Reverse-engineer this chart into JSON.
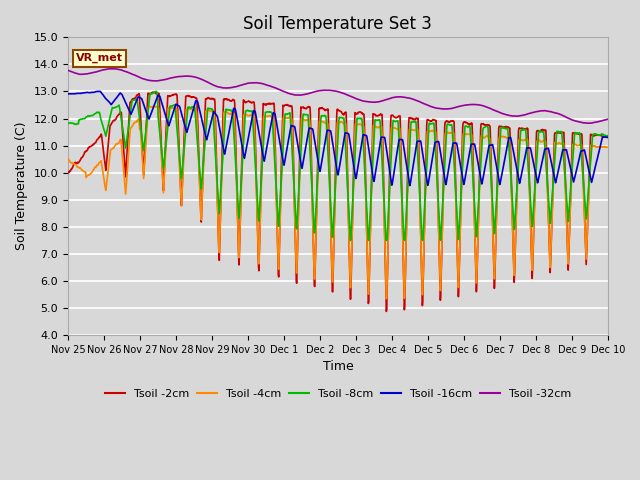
{
  "title": "Soil Temperature Set 3",
  "xlabel": "Time",
  "ylabel": "Soil Temperature (C)",
  "ylim": [
    4.0,
    15.0
  ],
  "yticks": [
    4.0,
    5.0,
    6.0,
    7.0,
    8.0,
    9.0,
    10.0,
    11.0,
    12.0,
    13.0,
    14.0,
    15.0
  ],
  "bg_color": "#d8d8d8",
  "grid_color": "#ffffff",
  "legend_label": "VR_met",
  "series_labels": [
    "Tsoil -2cm",
    "Tsoil -4cm",
    "Tsoil -8cm",
    "Tsoil -16cm",
    "Tsoil -32cm"
  ],
  "series_colors": [
    "#cc0000",
    "#ff8800",
    "#00bb00",
    "#0000cc",
    "#990099"
  ],
  "line_width": 1.2,
  "figsize": [
    6.4,
    4.8
  ],
  "dpi": 100,
  "title_fontsize": 12,
  "axis_label_fontsize": 9,
  "tick_fontsize": 8,
  "xtick_labels": [
    "Nov 25",
    "Nov 26",
    "Nov 27",
    "Nov 28",
    "Nov 29",
    "Nov 30",
    "Dec 1",
    "Dec 2",
    "Dec 3",
    "Dec 4",
    "Dec 5",
    "Dec 6",
    "Dec 7",
    "Dec 8",
    "Dec 9",
    "Dec 10"
  ]
}
